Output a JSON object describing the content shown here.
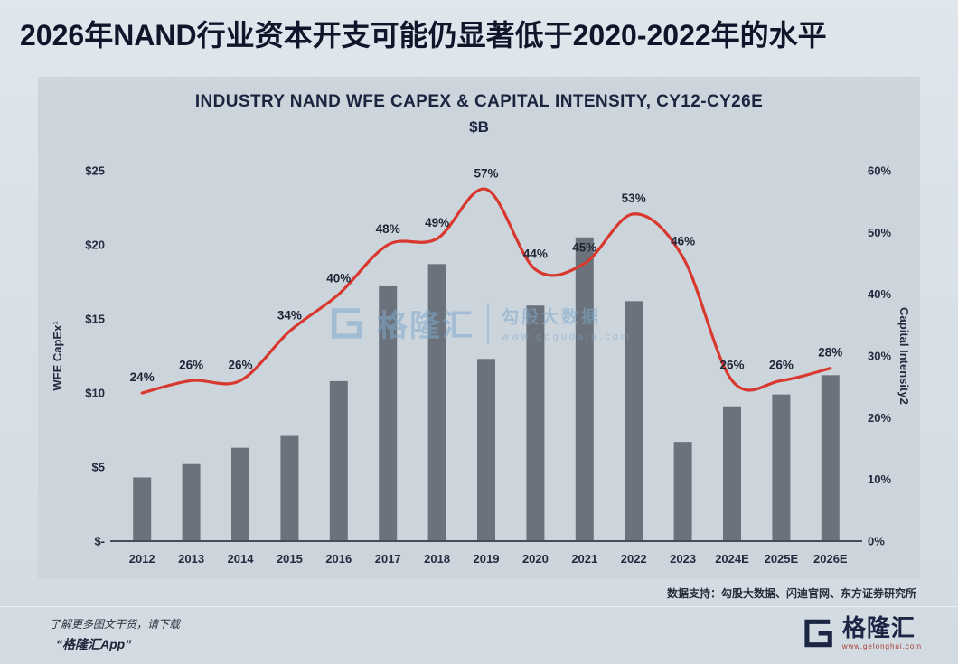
{
  "page": {
    "headline": "2026年NAND行业资本开支可能仍显著低于2020-2022年的水平",
    "source_note": "数据支持：勾股大数据、闪迪官网、东方证券研究所",
    "watermark": {
      "brand": "格隆汇",
      "text": "勾股大数据",
      "url": "www.gogudata.com"
    },
    "footer": {
      "promo_line1": "了解更多图文干货，请下载",
      "promo_line2": "“格隆汇App”",
      "brand_name": "格隆汇",
      "brand_url": "www.gelonghui.com"
    }
  },
  "chart_data": {
    "type": "bar",
    "combo": "bar+line",
    "title": "INDUSTRY NAND WFE CAPEX & CAPITAL INTENSITY, CY12-CY26E",
    "subtitle": "$B",
    "categories": [
      "2012",
      "2013",
      "2014",
      "2015",
      "2016",
      "2017",
      "2018",
      "2019",
      "2020",
      "2021",
      "2022",
      "2023",
      "2024E",
      "2025E",
      "2026E"
    ],
    "series": [
      {
        "name": "WFE CapEx¹",
        "type": "bar",
        "axis": "left",
        "values": [
          4.3,
          5.2,
          6.3,
          7.1,
          10.8,
          17.2,
          18.7,
          12.3,
          15.9,
          20.5,
          16.2,
          6.7,
          9.1,
          9.9,
          11.2
        ]
      },
      {
        "name": "Capital Intensity2",
        "type": "line",
        "axis": "right",
        "values": [
          24,
          26,
          26,
          34,
          40,
          48,
          49,
          57,
          44,
          45,
          53,
          46,
          26,
          26,
          28
        ],
        "labels": [
          "24%",
          "26%",
          "26%",
          "34%",
          "40%",
          "48%",
          "49%",
          "57%",
          "44%",
          "45%",
          "53%",
          "46%",
          "26%",
          "26%",
          "28%"
        ]
      }
    ],
    "left_axis": {
      "label": "WFE CapEx¹",
      "ticks": [
        "$25",
        "$20",
        "$15",
        "$10",
        "$5",
        "$-"
      ],
      "tick_values": [
        25,
        20,
        15,
        10,
        5,
        0
      ],
      "range": [
        0,
        25
      ]
    },
    "right_axis": {
      "label": "Capital Intensity2",
      "ticks": [
        "60%",
        "50%",
        "40%",
        "30%",
        "20%",
        "10%",
        "0%"
      ],
      "tick_values": [
        60,
        50,
        40,
        30,
        20,
        10,
        0
      ],
      "range": [
        0,
        60
      ]
    },
    "legend": "none",
    "grid": false,
    "colors": {
      "bar": "#6c727b",
      "line": "#d8382e",
      "label": "#1d2435",
      "axis_text": "#232b3e",
      "baseline": "#454c5b"
    }
  }
}
